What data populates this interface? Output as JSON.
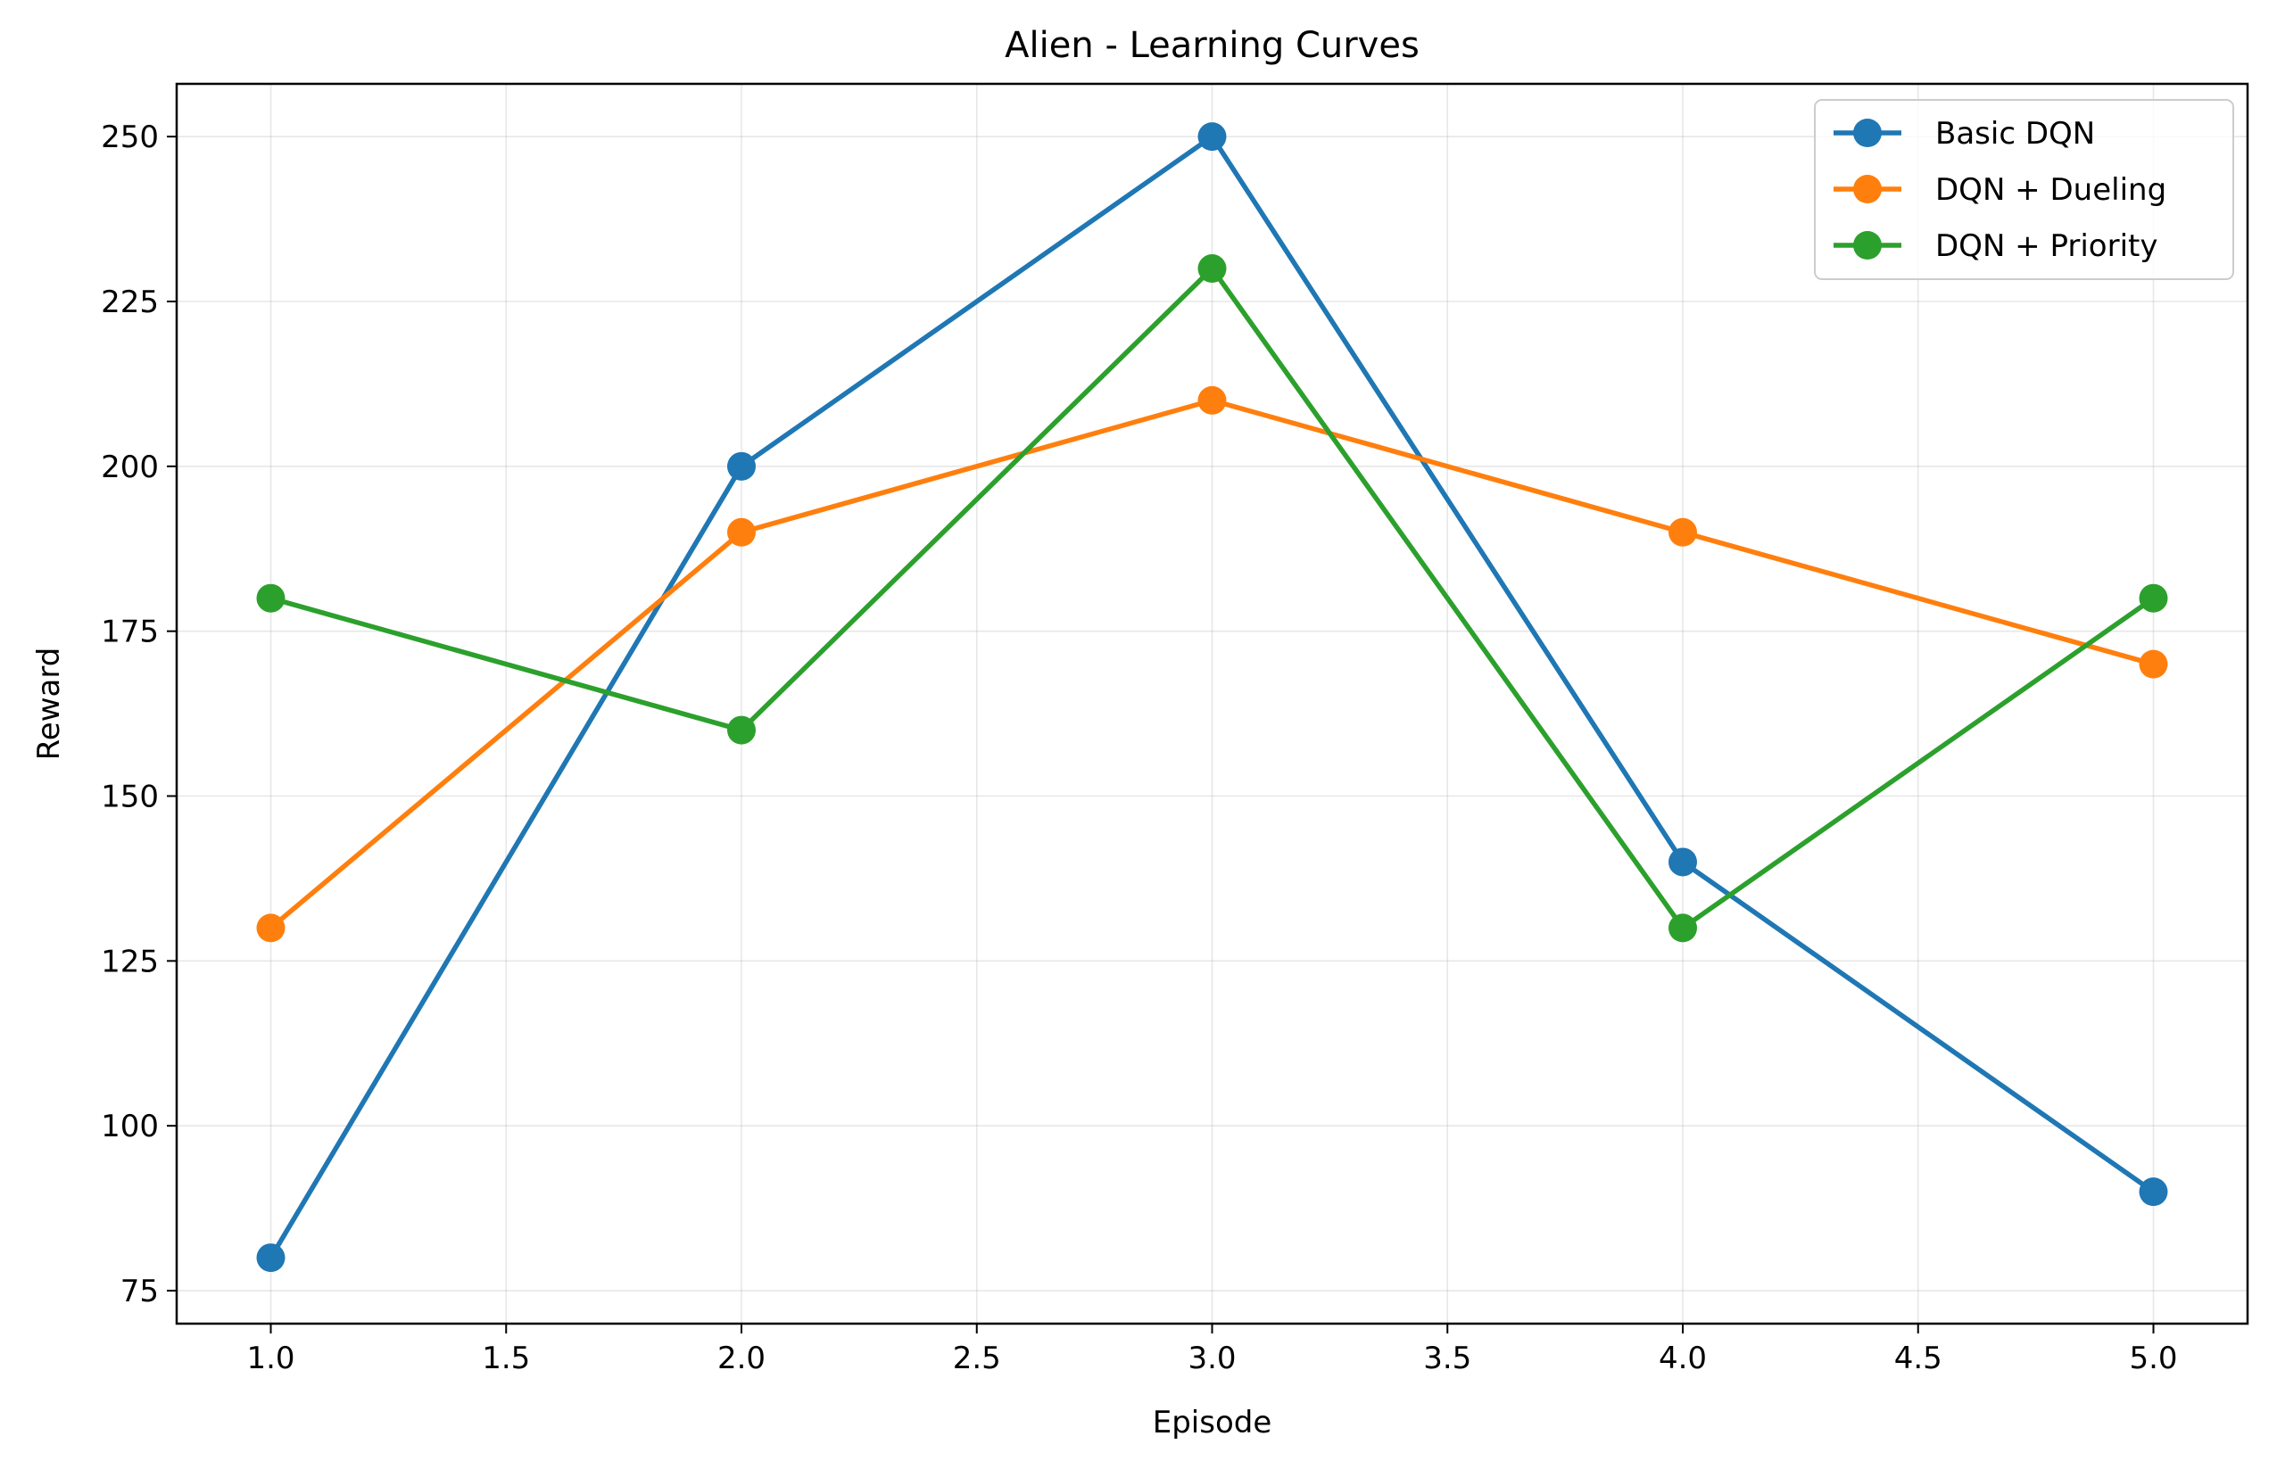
{
  "chart_data": {
    "type": "line",
    "title": "Alien - Learning Curves",
    "xlabel": "Episode",
    "ylabel": "Reward",
    "x": [
      1,
      2,
      3,
      4,
      5
    ],
    "xlim": [
      0.8,
      5.2
    ],
    "ylim": [
      70,
      258
    ],
    "xticks": [
      "1.0",
      "1.5",
      "2.0",
      "2.5",
      "3.0",
      "3.5",
      "4.0",
      "4.5",
      "5.0"
    ],
    "yticks": [
      "75",
      "100",
      "125",
      "150",
      "175",
      "200",
      "225",
      "250"
    ],
    "grid": true,
    "legend_position": "top-right",
    "series": [
      {
        "name": "Basic DQN",
        "color": "#1f77b4",
        "values": [
          80,
          200,
          250,
          140,
          90
        ]
      },
      {
        "name": "DQN + Dueling",
        "color": "#ff7f0e",
        "values": [
          130,
          190,
          210,
          190,
          170
        ]
      },
      {
        "name": "DQN + Priority",
        "color": "#2ca02c",
        "values": [
          180,
          160,
          230,
          130,
          180
        ]
      }
    ]
  }
}
